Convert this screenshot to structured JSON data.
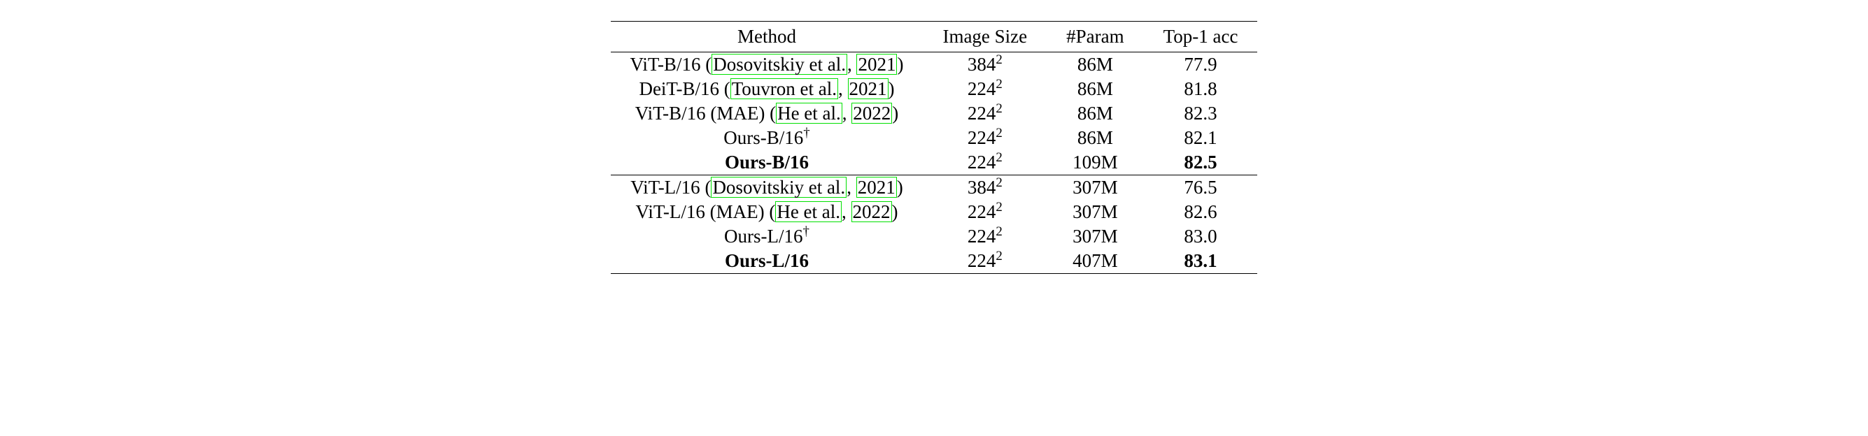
{
  "table": {
    "columns": [
      "Method",
      "Image Size",
      "#Param",
      "Top-1 acc"
    ],
    "groups": [
      {
        "rows": [
          {
            "method_prefix": "ViT-B/16 ",
            "cite_open": "(",
            "cite_text": "Dosovitskiy et al.",
            "cite_sep": ", ",
            "cite_year": "2021",
            "cite_close": ")",
            "method_suffix": "",
            "bold_method": false,
            "dagger": false,
            "size_base": "384",
            "size_exp": "2",
            "param": "86M",
            "acc": "77.9",
            "bold_acc": false
          },
          {
            "method_prefix": "DeiT-B/16 ",
            "cite_open": "(",
            "cite_text": "Touvron et al.",
            "cite_sep": ", ",
            "cite_year": "2021",
            "cite_close": ")",
            "method_suffix": "",
            "bold_method": false,
            "dagger": false,
            "size_base": "224",
            "size_exp": "2",
            "param": "86M",
            "acc": "81.8",
            "bold_acc": false
          },
          {
            "method_prefix": "ViT-B/16 (MAE) ",
            "cite_open": "(",
            "cite_text": "He et al.",
            "cite_sep": ", ",
            "cite_year": "2022",
            "cite_close": ")",
            "method_suffix": "",
            "bold_method": false,
            "dagger": false,
            "size_base": "224",
            "size_exp": "2",
            "param": "86M",
            "acc": "82.3",
            "bold_acc": false
          },
          {
            "method_prefix": "Ours-B/16",
            "cite_open": "",
            "cite_text": "",
            "cite_sep": "",
            "cite_year": "",
            "cite_close": "",
            "method_suffix": "",
            "bold_method": false,
            "dagger": true,
            "size_base": "224",
            "size_exp": "2",
            "param": "86M",
            "acc": "82.1",
            "bold_acc": false
          },
          {
            "method_prefix": "Ours-B/16",
            "cite_open": "",
            "cite_text": "",
            "cite_sep": "",
            "cite_year": "",
            "cite_close": "",
            "method_suffix": "",
            "bold_method": true,
            "dagger": false,
            "size_base": "224",
            "size_exp": "2",
            "param": "109M",
            "acc": "82.5",
            "bold_acc": true
          }
        ]
      },
      {
        "rows": [
          {
            "method_prefix": "ViT-L/16 ",
            "cite_open": "(",
            "cite_text": "Dosovitskiy et al.",
            "cite_sep": ", ",
            "cite_year": "2021",
            "cite_close": ")",
            "method_suffix": "",
            "bold_method": false,
            "dagger": false,
            "size_base": "384",
            "size_exp": "2",
            "param": "307M",
            "acc": "76.5",
            "bold_acc": false
          },
          {
            "method_prefix": "ViT-L/16 (MAE) ",
            "cite_open": "(",
            "cite_text": "He et al.",
            "cite_sep": ", ",
            "cite_year": "2022",
            "cite_close": ")",
            "method_suffix": "",
            "bold_method": false,
            "dagger": false,
            "size_base": "224",
            "size_exp": "2",
            "param": "307M",
            "acc": "82.6",
            "bold_acc": false
          },
          {
            "method_prefix": "Ours-L/16",
            "cite_open": "",
            "cite_text": "",
            "cite_sep": "",
            "cite_year": "",
            "cite_close": "",
            "method_suffix": "",
            "bold_method": false,
            "dagger": true,
            "size_base": "224",
            "size_exp": "2",
            "param": "307M",
            "acc": "83.0",
            "bold_acc": false
          },
          {
            "method_prefix": "Ours-L/16",
            "cite_open": "",
            "cite_text": "",
            "cite_sep": "",
            "cite_year": "",
            "cite_close": "",
            "method_suffix": "",
            "bold_method": true,
            "dagger": false,
            "size_base": "224",
            "size_exp": "2",
            "param": "407M",
            "acc": "83.1",
            "bold_acc": true
          }
        ]
      }
    ],
    "style": {
      "font_family": "Times New Roman",
      "font_size_pt": 20,
      "cite_border_color": "#00e000",
      "text_color": "#000000",
      "background_color": "#ffffff",
      "rule_color": "#000000"
    }
  },
  "dagger_symbol": "†"
}
